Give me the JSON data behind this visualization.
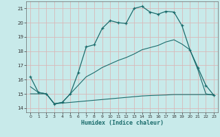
{
  "xlabel": "Humidex (Indice chaleur)",
  "background_color": "#c8eaea",
  "grid_color": "#d8b8b8",
  "line_color": "#1a6b6b",
  "xlim": [
    -0.5,
    23.5
  ],
  "ylim": [
    13.7,
    21.5
  ],
  "yticks": [
    14,
    15,
    16,
    17,
    18,
    19,
    20,
    21
  ],
  "xticks": [
    0,
    1,
    2,
    3,
    4,
    5,
    6,
    7,
    8,
    9,
    10,
    11,
    12,
    13,
    14,
    15,
    16,
    17,
    18,
    19,
    20,
    21,
    22,
    23
  ],
  "curve1_x": [
    0,
    1,
    2,
    3,
    4,
    5,
    6,
    7,
    8,
    9,
    10,
    11,
    12,
    13,
    14,
    15,
    16,
    17,
    18,
    19,
    20,
    21,
    22,
    23
  ],
  "curve1_y": [
    16.2,
    15.1,
    15.0,
    14.3,
    14.4,
    15.0,
    16.5,
    18.3,
    18.45,
    19.6,
    20.15,
    20.0,
    19.95,
    21.0,
    21.15,
    20.75,
    20.6,
    20.8,
    20.75,
    19.8,
    18.1,
    16.85,
    15.6,
    14.9
  ],
  "curve2_x": [
    0,
    1,
    2,
    3,
    4,
    5,
    6,
    7,
    8,
    9,
    10,
    11,
    12,
    13,
    14,
    15,
    16,
    17,
    18,
    19,
    20,
    21,
    22,
    23
  ],
  "curve2_y": [
    15.5,
    15.1,
    15.0,
    14.3,
    14.4,
    15.0,
    15.6,
    16.2,
    16.5,
    16.85,
    17.1,
    17.35,
    17.55,
    17.8,
    18.1,
    18.25,
    18.4,
    18.65,
    18.8,
    18.5,
    18.1,
    16.7,
    15.0,
    14.9
  ],
  "curve3_x": [
    0,
    1,
    2,
    3,
    4,
    5,
    6,
    7,
    8,
    9,
    10,
    11,
    12,
    13,
    14,
    15,
    16,
    17,
    18,
    19,
    20,
    21,
    22,
    23
  ],
  "curve3_y": [
    15.0,
    15.0,
    15.0,
    14.3,
    14.35,
    14.4,
    14.45,
    14.5,
    14.55,
    14.6,
    14.65,
    14.7,
    14.75,
    14.8,
    14.85,
    14.88,
    14.9,
    14.92,
    14.95,
    14.95,
    14.95,
    14.95,
    14.95,
    14.95
  ]
}
